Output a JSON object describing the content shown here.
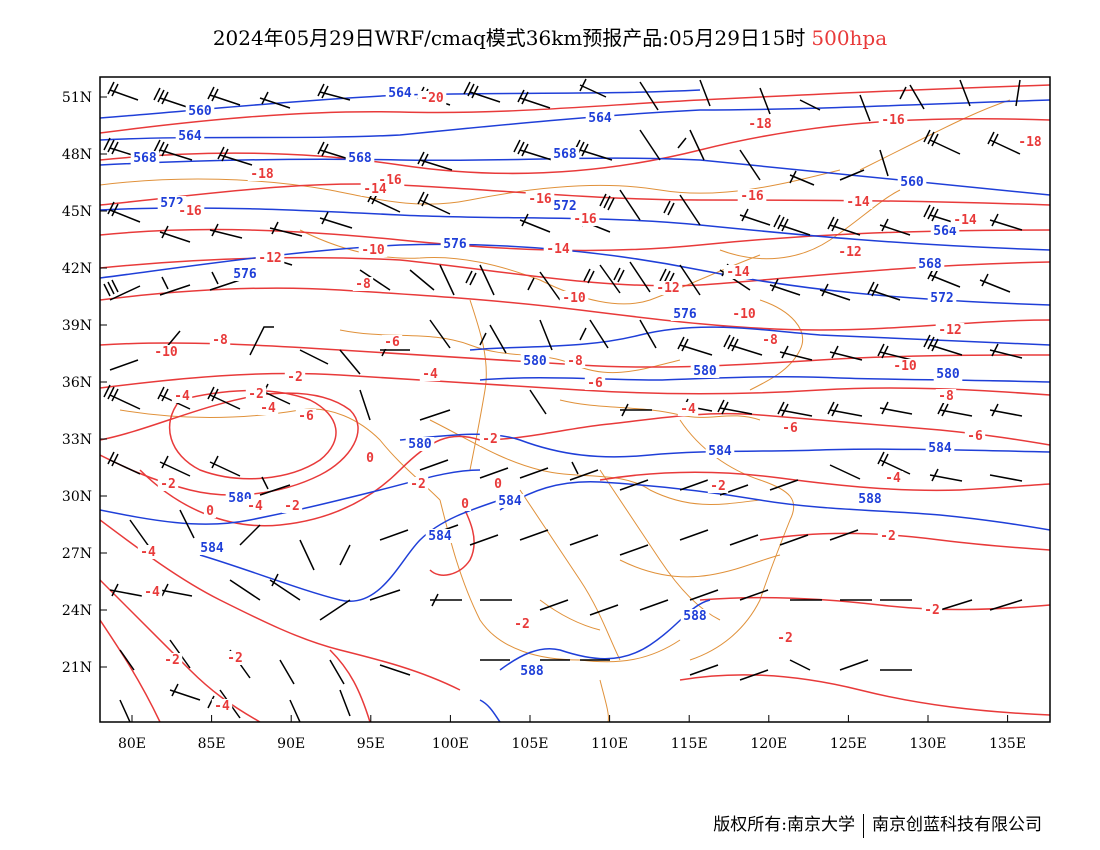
{
  "title": {
    "main": "2024年05月29日WRF/cmaq模式36km预报产品:05月29日15时",
    "level": "500hpa"
  },
  "footer": {
    "copyright": "版权所有:南京大学",
    "company": "南京创蓝科技有限公司"
  },
  "axes": {
    "lat_labels": [
      "51N",
      "48N",
      "45N",
      "42N",
      "39N",
      "36N",
      "33N",
      "30N",
      "27N",
      "24N",
      "21N"
    ],
    "lon_labels": [
      "80E",
      "85E",
      "90E",
      "95E",
      "100E",
      "105E",
      "110E",
      "115E",
      "120E",
      "125E",
      "130E",
      "135E"
    ]
  },
  "colors": {
    "height_contour": "#1f3fd8",
    "temperature_contour": "#e83a3a",
    "border": "#e0913a",
    "wind_barb": "#000000"
  },
  "height_labels": [
    "560",
    "564",
    "568",
    "572",
    "576",
    "580",
    "584",
    "588"
  ],
  "temperature_labels": [
    "-20",
    "-18",
    "-16",
    "-14",
    "-12",
    "-10",
    "-8",
    "-6",
    "-4",
    "-2",
    "0"
  ],
  "map_layers": {
    "height_contours": "blue",
    "temperature_contours": "red",
    "boundaries": "orange",
    "wind_barbs": "black"
  }
}
